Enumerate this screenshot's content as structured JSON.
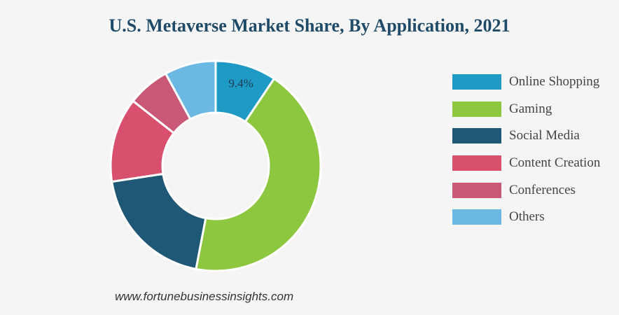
{
  "title": "U.S. Metaverse Market Share, By Application, 2021",
  "source": "www.fortunebusinessinsights.com",
  "chart_data": {
    "type": "pie",
    "variant": "donut",
    "title": "U.S. Metaverse Market Share, By Application, 2021",
    "unit": "%",
    "legend_position": "right",
    "categories": [
      "Online Shopping",
      "Gaming",
      "Social Media",
      "Content Creation",
      "Conferences",
      "Others"
    ],
    "values": [
      9.4,
      43.6,
      19.6,
      13.0,
      6.5,
      7.9
    ],
    "colors": [
      "#1e9ac4",
      "#8dc63f",
      "#1f5876",
      "#d9506f",
      "#c85876",
      "#6bb8e3"
    ],
    "data_labels": [
      {
        "category": "Online Shopping",
        "text": "9.4%"
      }
    ]
  }
}
